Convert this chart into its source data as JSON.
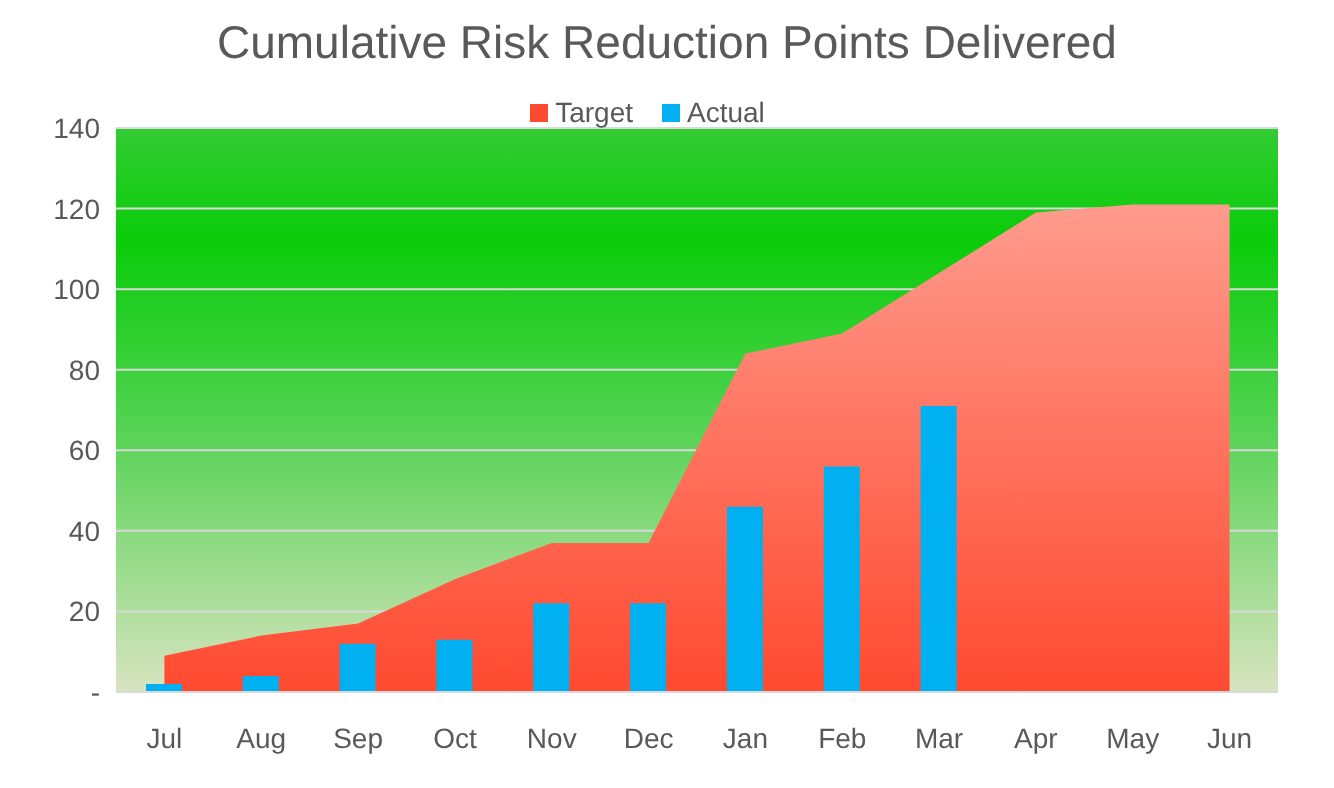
{
  "chart_data": {
    "type": "area",
    "title": "Cumulative Risk Reduction Points Delivered",
    "categories": [
      "Jul",
      "Aug",
      "Sep",
      "Oct",
      "Nov",
      "Dec",
      "Jan",
      "Feb",
      "Mar",
      "Apr",
      "May",
      "Jun"
    ],
    "series": [
      {
        "name": "Target",
        "color": "#ff4a30",
        "values": [
          9,
          14,
          17,
          28,
          37,
          37,
          84,
          89,
          104,
          119,
          121,
          121
        ]
      },
      {
        "name": "Actual",
        "type": "bar",
        "color": "#00b0f0",
        "values": [
          2,
          4,
          12,
          13,
          22,
          22,
          46,
          56,
          71,
          null,
          null,
          null
        ]
      }
    ],
    "ylim": [
      0,
      140
    ],
    "yticks": [
      {
        "value": 0,
        "label": "-"
      },
      20,
      40,
      60,
      80,
      100,
      120,
      140
    ],
    "grid": "y",
    "legend": "top"
  }
}
